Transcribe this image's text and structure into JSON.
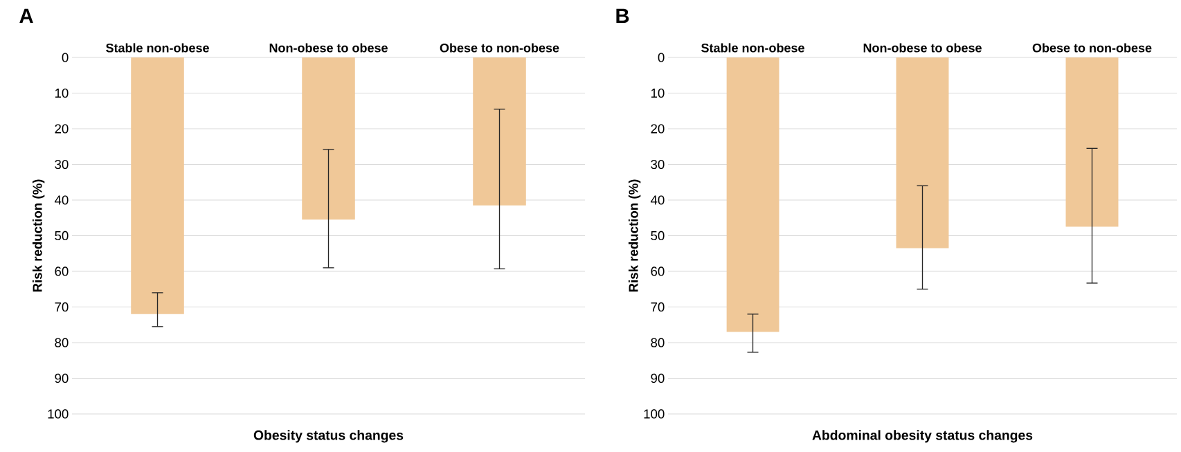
{
  "chart_data": [
    {
      "type": "bar",
      "title": "A",
      "xlabel": "Obesity status changes",
      "ylabel": "Risk reduction (%)",
      "categories": [
        "Stable non-obese",
        "Non-obese to obese",
        "Obese to non-obese"
      ],
      "values": [
        72,
        45.5,
        41.5
      ],
      "color": "#f0c898",
      "errors": [
        [
          66,
          75.5
        ],
        [
          25.8,
          59
        ],
        [
          14.5,
          59.3
        ]
      ],
      "ylim": [
        100,
        0
      ],
      "yticks": [
        0,
        10,
        20,
        30,
        40,
        50,
        60,
        70,
        80,
        90,
        100
      ],
      "grid": "y"
    },
    {
      "type": "bar",
      "title": "B",
      "xlabel": "Abdominal obesity status changes",
      "ylabel": "Risk reduction (%)",
      "categories": [
        "Stable non-obese",
        "Non-obese to obese",
        "Obese to non-obese"
      ],
      "values": [
        77,
        53.5,
        47.5
      ],
      "color": "#f0c898",
      "errors": [
        [
          72,
          82.7
        ],
        [
          36,
          65
        ],
        [
          25.5,
          63.3
        ]
      ],
      "ylim": [
        100,
        0
      ],
      "yticks": [
        0,
        10,
        20,
        30,
        40,
        50,
        60,
        70,
        80,
        90,
        100
      ],
      "grid": "y"
    }
  ]
}
